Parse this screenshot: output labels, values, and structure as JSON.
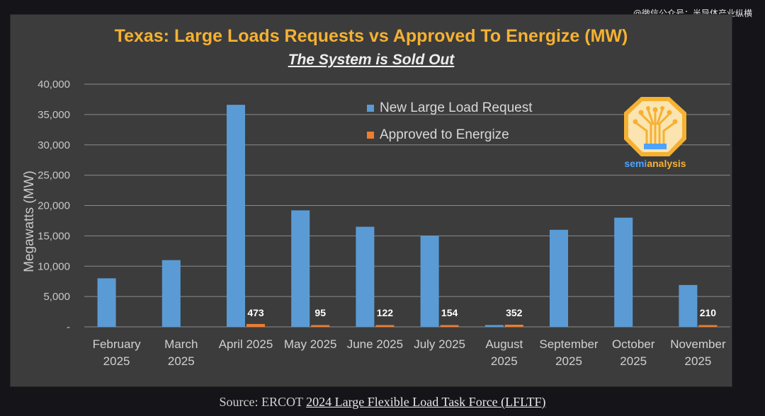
{
  "watermark": "@微信公众号：半导体产业纵横",
  "chart_data": {
    "type": "bar",
    "title": "Texas: Large Loads Requests vs Approved To Energize (MW)",
    "subtitle": "The System is Sold Out",
    "ylabel": "Megawatts (MW)",
    "xlabel": "",
    "ylim": [
      0,
      40000
    ],
    "yticks": [
      0,
      5000,
      10000,
      15000,
      20000,
      25000,
      30000,
      35000,
      40000
    ],
    "ytick_labels": [
      "-",
      "5,000",
      "10,000",
      "15,000",
      "20,000",
      "25,000",
      "30,000",
      "35,000",
      "40,000"
    ],
    "grid": true,
    "legend_position": "top-center",
    "categories": [
      [
        "February",
        "2025"
      ],
      [
        "March",
        "2025"
      ],
      [
        "April 2025"
      ],
      [
        "May 2025"
      ],
      [
        "June 2025"
      ],
      [
        "July 2025"
      ],
      [
        "August",
        "2025"
      ],
      [
        "September",
        "2025"
      ],
      [
        "October",
        "2025"
      ],
      [
        "November",
        "2025"
      ]
    ],
    "series": [
      {
        "name": "New Large Load Request",
        "color": "#5b9bd5",
        "values": [
          8000,
          11000,
          36600,
          19200,
          16500,
          15000,
          300,
          16000,
          18000,
          6900
        ]
      },
      {
        "name": "Approved to Energize",
        "color": "#ed7d31",
        "values": [
          0,
          0,
          473,
          95,
          122,
          154,
          352,
          0,
          0,
          210
        ],
        "data_labels": [
          "",
          "",
          "473",
          "95",
          "122",
          "154",
          "352",
          "",
          "",
          "210"
        ]
      }
    ]
  },
  "logo": {
    "text_a": "semi",
    "text_b": "analysis"
  },
  "source": {
    "prefix": "Source: ERCOT ",
    "link": "2024 Large Flexible Load Task Force (LFLTF)"
  }
}
